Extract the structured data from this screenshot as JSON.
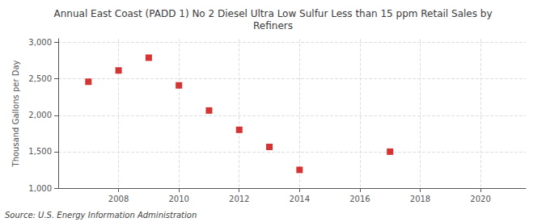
{
  "chart_data": {
    "type": "scatter",
    "title": "Annual East Coast (PADD 1) No 2 Diesel Ultra Low Sulfur Less than 15 ppm Retail Sales by\nRefiners",
    "ylabel": "Thousand Gallons per Day",
    "annotations": [
      "Source: U.S. Energy Information Administration"
    ],
    "x": [
      2007,
      2008,
      2009,
      2010,
      2011,
      2012,
      2013,
      2014,
      2017
    ],
    "values": [
      2460,
      2615,
      2790,
      2410,
      2065,
      1800,
      1565,
      1250,
      1500
    ],
    "color": "#cc0000",
    "marker": "square",
    "xlim": [
      2006.0,
      2021.5
    ],
    "ylim": [
      1000,
      3050
    ],
    "xticks": [
      2008,
      2010,
      2012,
      2014,
      2016,
      2018,
      2020
    ],
    "yticks": [
      {
        "value": 1000,
        "label": "1,000"
      },
      {
        "value": 1500,
        "label": "1,500"
      },
      {
        "value": 2000,
        "label": "2,000"
      },
      {
        "value": 2500,
        "label": "2,500"
      },
      {
        "value": 3000,
        "label": "3,000"
      }
    ],
    "grid": true
  }
}
